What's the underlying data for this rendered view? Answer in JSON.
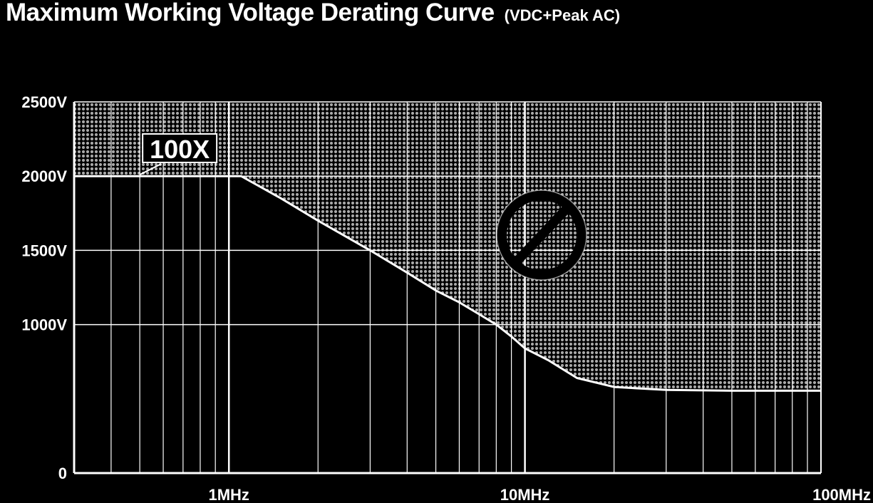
{
  "colors": {
    "background": "#000000",
    "grid": "#ffffff",
    "curve_fill": "#000000",
    "hatch_region": "#9a9a9a"
  },
  "icons": [
    "prohibited-icon"
  ],
  "chart_data": {
    "type": "area",
    "title": "Maximum Working Voltage Derating Curve",
    "subtitle": "(VDC+Peak AC)",
    "xlabel": "",
    "ylabel": "",
    "x_scale": "log",
    "x_unit": "Hz",
    "xlim": [
      300000,
      100000000
    ],
    "ylim": [
      0,
      2500
    ],
    "x_tick_labels": [
      {
        "value": 1000000,
        "label": "1MHz"
      },
      {
        "value": 10000000,
        "label": "10MHz"
      },
      {
        "value": 100000000,
        "label": "100MHz"
      }
    ],
    "y_tick_labels": [
      {
        "value": 0,
        "label": "0"
      },
      {
        "value": 1000,
        "label": "1000V"
      },
      {
        "value": 1500,
        "label": "1500V"
      },
      {
        "value": 2000,
        "label": "2000V"
      },
      {
        "value": 2500,
        "label": "2500V"
      }
    ],
    "grid": true,
    "series": [
      {
        "points": [
          [
            300000,
            2000
          ],
          [
            1100000,
            2000
          ],
          [
            1500000,
            1850
          ],
          [
            2000000,
            1700
          ],
          [
            3000000,
            1500
          ],
          [
            4000000,
            1350
          ],
          [
            5000000,
            1230
          ],
          [
            6000000,
            1150
          ],
          [
            7000000,
            1070
          ],
          [
            8000000,
            1000
          ],
          [
            9000000,
            920
          ],
          [
            10000000,
            840
          ],
          [
            12000000,
            760
          ],
          [
            15000000,
            640
          ],
          [
            20000000,
            580
          ],
          [
            30000000,
            560
          ],
          [
            50000000,
            555
          ],
          [
            100000000,
            555
          ]
        ]
      }
    ],
    "annotations": [
      {
        "text": "100X",
        "x": 500000,
        "y": 2000
      }
    ]
  }
}
